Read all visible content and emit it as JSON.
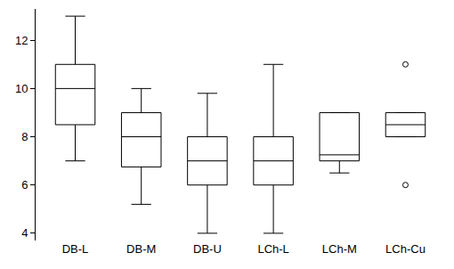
{
  "chart_data": {
    "type": "box",
    "categories": [
      "DB-L",
      "DB-M",
      "DB-U",
      "LCh-L",
      "LCh-M",
      "LCh-Cu"
    ],
    "boxes": [
      {
        "min": 7,
        "q1": 8.5,
        "median": 10,
        "q3": 11,
        "max": 13,
        "outliers": []
      },
      {
        "min": 5.2,
        "q1": 6.75,
        "median": 8,
        "q3": 9,
        "max": 10,
        "outliers": []
      },
      {
        "min": 4,
        "q1": 6,
        "median": 7,
        "q3": 8,
        "max": 9.8,
        "outliers": []
      },
      {
        "min": 4,
        "q1": 6,
        "median": 7,
        "q3": 8,
        "max": 11,
        "outliers": []
      },
      {
        "min": 6.5,
        "q1": 7,
        "median": 7.25,
        "q3": 9,
        "max": 9,
        "outliers": []
      },
      {
        "min": 8,
        "q1": 8,
        "median": 8.5,
        "q3": 9,
        "max": 9,
        "outliers": [
          11,
          6
        ]
      }
    ],
    "color": "#000000",
    "ylim": [
      3.7,
      13.3
    ],
    "yticks": [
      4,
      6,
      8,
      10,
      12
    ],
    "grid": false
  }
}
